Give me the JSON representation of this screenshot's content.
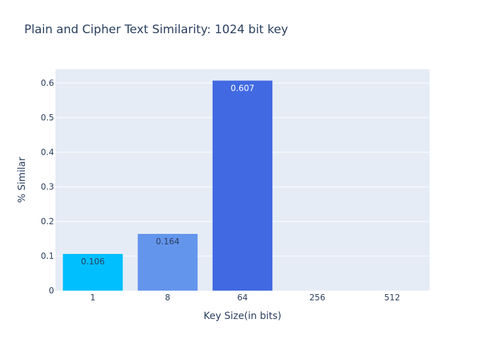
{
  "chart_data": {
    "type": "bar",
    "title": "Plain and Cipher Text Similarity: 1024 bit key",
    "xlabel": "Key Size(in bits)",
    "ylabel": "% Similar",
    "categories": [
      "1",
      "8",
      "64",
      "256",
      "512"
    ],
    "values": [
      0.106,
      0.164,
      0.607,
      0.0,
      0.0
    ],
    "data_labels": [
      "0.106",
      "0.164",
      "0.607",
      "",
      ""
    ],
    "bar_colors": [
      "#00bfff",
      "#6495ed",
      "#4169e1",
      "#4169e1",
      "#4169e1"
    ],
    "label_colors": [
      "#2a3f5f",
      "#2a3f5f",
      "#ffffff",
      "#2a3f5f",
      "#2a3f5f"
    ],
    "ylim": [
      0,
      0.64
    ],
    "yticks": [
      0,
      0.1,
      0.2,
      0.3,
      0.4,
      0.5,
      0.6
    ],
    "ytick_labels": [
      "0",
      "0.1",
      "0.2",
      "0.3",
      "0.4",
      "0.5",
      "0.6"
    ],
    "grid": true,
    "plot_background": "#e5ecf6",
    "text_color": "#2a3f5f",
    "gridline_color": "#ffffff"
  }
}
